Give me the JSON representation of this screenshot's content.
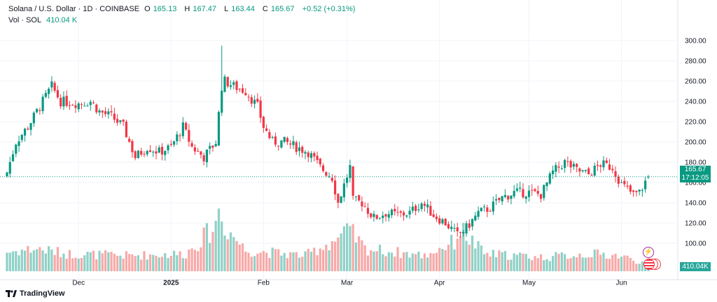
{
  "legend": {
    "symbol": "Solana / U.S. Dollar · 1D · COINBASE",
    "open_label": "O",
    "open": "165.13",
    "high_label": "H",
    "high": "167.47",
    "low_label": "L",
    "low": "163.44",
    "close_label": "C",
    "close": "165.67",
    "change": "+0.52 (+0.31%)",
    "vol_label": "Vol · SOL",
    "vol": "410.04 K"
  },
  "price_tag": {
    "price": "165.67",
    "countdown": "17:12:05"
  },
  "volume_tag": "410.04K",
  "branding": "TradingView",
  "colors": {
    "up": "#089981",
    "down": "#f23645",
    "vol_up": "#8fd1c7",
    "vol_down": "#f7a9a7",
    "grid": "#f0f3fa"
  },
  "chart_data": {
    "type": "candlestick",
    "title": "Solana / U.S. Dollar · 1D · COINBASE",
    "ylim": [
      85,
      305
    ],
    "y_ticks": [
      "300.00",
      "280.00",
      "260.00",
      "240.00",
      "220.00",
      "200.00",
      "180.00",
      "160.00",
      "140.00",
      "120.00",
      "100.00"
    ],
    "x_ticks": [
      {
        "label": "Dec",
        "day": 24
      },
      {
        "label": "2025",
        "day": 55
      },
      {
        "label": "Feb",
        "day": 86
      },
      {
        "label": "Mar",
        "day": 114
      },
      {
        "label": "Apr",
        "day": 145
      },
      {
        "label": "May",
        "day": 175
      },
      {
        "label": "Jun",
        "day": 206
      }
    ],
    "start_date": "2024-11-07",
    "close_anchors": [
      [
        0,
        170
      ],
      [
        3,
        200
      ],
      [
        7,
        215
      ],
      [
        11,
        235
      ],
      [
        15,
        255
      ],
      [
        18,
        240
      ],
      [
        24,
        238
      ],
      [
        28,
        240
      ],
      [
        31,
        230
      ],
      [
        35,
        225
      ],
      [
        39,
        215
      ],
      [
        43,
        185
      ],
      [
        47,
        195
      ],
      [
        51,
        190
      ],
      [
        55,
        195
      ],
      [
        59,
        215
      ],
      [
        62,
        195
      ],
      [
        66,
        185
      ],
      [
        70,
        200
      ],
      [
        72,
        255
      ],
      [
        73,
        260
      ],
      [
        76,
        255
      ],
      [
        80,
        250
      ],
      [
        84,
        235
      ],
      [
        86,
        215
      ],
      [
        89,
        200
      ],
      [
        93,
        200
      ],
      [
        97,
        195
      ],
      [
        101,
        190
      ],
      [
        105,
        175
      ],
      [
        109,
        165
      ],
      [
        111,
        140
      ],
      [
        115,
        175
      ],
      [
        116,
        142
      ],
      [
        119,
        140
      ],
      [
        123,
        125
      ],
      [
        127,
        130
      ],
      [
        131,
        128
      ],
      [
        135,
        130
      ],
      [
        139,
        140
      ],
      [
        143,
        128
      ],
      [
        147,
        120
      ],
      [
        151,
        108
      ],
      [
        154,
        115
      ],
      [
        158,
        130
      ],
      [
        162,
        135
      ],
      [
        166,
        145
      ],
      [
        170,
        150
      ],
      [
        175,
        150
      ],
      [
        179,
        148
      ],
      [
        183,
        170
      ],
      [
        187,
        180
      ],
      [
        191,
        172
      ],
      [
        195,
        168
      ],
      [
        199,
        178
      ],
      [
        203,
        175
      ],
      [
        206,
        158
      ],
      [
        210,
        148
      ],
      [
        212,
        150
      ],
      [
        215,
        166
      ]
    ],
    "volume_anchors_k": [
      [
        0,
        1100
      ],
      [
        10,
        1300
      ],
      [
        20,
        1000
      ],
      [
        40,
        900
      ],
      [
        60,
        1000
      ],
      [
        70,
        2600
      ],
      [
        71,
        4000
      ],
      [
        72,
        2800
      ],
      [
        80,
        1200
      ],
      [
        100,
        900
      ],
      [
        110,
        1800
      ],
      [
        115,
        2300
      ],
      [
        120,
        1300
      ],
      [
        140,
        900
      ],
      [
        150,
        1700
      ],
      [
        152,
        2400
      ],
      [
        160,
        1000
      ],
      [
        180,
        800
      ],
      [
        195,
        1000
      ],
      [
        205,
        900
      ],
      [
        215,
        410
      ]
    ],
    "last": {
      "open": 165.13,
      "high": 167.47,
      "low": 163.44,
      "close": 165.67,
      "volume_k": 410.04
    }
  }
}
